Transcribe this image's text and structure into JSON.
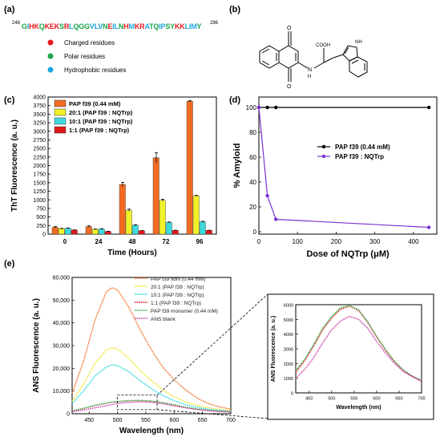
{
  "panel_labels": {
    "a": "(a)",
    "b": "(b)",
    "c": "(c)",
    "d": "(d)",
    "e": "(e)"
  },
  "panel_a": {
    "start_index": "248",
    "end_index": "286",
    "residues": [
      {
        "t": "G",
        "c": "polar"
      },
      {
        "t": "I",
        "c": "hydrophobic"
      },
      {
        "t": "H",
        "c": "charged"
      },
      {
        "t": "K",
        "c": "charged"
      },
      {
        "t": "Q",
        "c": "polar"
      },
      {
        "t": "K",
        "c": "charged"
      },
      {
        "t": "E",
        "c": "charged"
      },
      {
        "t": "K",
        "c": "charged"
      },
      {
        "t": "S",
        "c": "polar"
      },
      {
        "t": "R",
        "c": "charged"
      },
      {
        "t": "L",
        "c": "hydrophobic"
      },
      {
        "t": "Q",
        "c": "polar"
      },
      {
        "t": "G",
        "c": "polar"
      },
      {
        "t": "G",
        "c": "polar"
      },
      {
        "t": "V",
        "c": "hydrophobic"
      },
      {
        "t": "L",
        "c": "hydrophobic"
      },
      {
        "t": "V",
        "c": "hydrophobic"
      },
      {
        "t": "N",
        "c": "polar"
      },
      {
        "t": "E",
        "c": "charged"
      },
      {
        "t": "I",
        "c": "hydrophobic"
      },
      {
        "t": "L",
        "c": "hydrophobic"
      },
      {
        "t": "N",
        "c": "polar"
      },
      {
        "t": "H",
        "c": "charged"
      },
      {
        "t": "M",
        "c": "hydrophobic"
      },
      {
        "t": "K",
        "c": "charged"
      },
      {
        "t": "R",
        "c": "charged"
      },
      {
        "t": "A",
        "c": "hydrophobic"
      },
      {
        "t": "T",
        "c": "polar"
      },
      {
        "t": "Q",
        "c": "polar"
      },
      {
        "t": "I",
        "c": "hydrophobic"
      },
      {
        "t": "P",
        "c": "hydrophobic"
      },
      {
        "t": "S",
        "c": "polar"
      },
      {
        "t": "Y",
        "c": "polar"
      },
      {
        "t": "K",
        "c": "charged"
      },
      {
        "t": "K",
        "c": "charged"
      },
      {
        "t": "L",
        "c": "hydrophobic"
      },
      {
        "t": "I",
        "c": "hydrophobic"
      },
      {
        "t": "M",
        "c": "hydrophobic"
      },
      {
        "t": "Y",
        "c": "polar"
      }
    ],
    "legend": [
      {
        "label": "Charged residues",
        "class": "charged"
      },
      {
        "label": "Polar residues",
        "class": "polar"
      },
      {
        "label": "Hydrophobic residues",
        "class": "hydrophobic"
      }
    ],
    "colors": {
      "charged": "#e8191c",
      "polar": "#1aa64a",
      "hydrophobic": "#1da6e0"
    }
  },
  "panel_b": {
    "atom_labels": {
      "o_top": "O",
      "o_bottom": "O",
      "nh": "N",
      "h_amine": "H",
      "cooh": "COOH",
      "nh_indole": "NH"
    }
  },
  "chart_data": [
    {
      "panel": "c",
      "type": "bar",
      "categories": [
        "0",
        "24",
        "48",
        "72",
        "96"
      ],
      "xlabel": "Time (Hours)",
      "ylabel": "ThT Fluorescence (a. u.)",
      "ylim": [
        0,
        4000
      ],
      "yticks": [
        "0",
        "250",
        "500",
        "750",
        "1000",
        "1250",
        "1500",
        "1750",
        "2000",
        "2250",
        "2500",
        "2750",
        "3000",
        "3250",
        "3500",
        "3750",
        "4000"
      ],
      "legend_position": "top-left",
      "series": [
        {
          "name": "PAP f39 (0.44 mM)",
          "values": [
            200,
            220,
            1450,
            2230,
            3880
          ],
          "errors": [
            20,
            20,
            60,
            150,
            20
          ],
          "color": "#f26b21"
        },
        {
          "name": "20:1 (PAP f39 : NQTrp)",
          "values": [
            160,
            140,
            700,
            990,
            1120
          ],
          "errors": [
            10,
            10,
            30,
            30,
            15
          ],
          "color": "#f1f12a"
        },
        {
          "name": "10:1 (PAP f39 : NQTrp)",
          "values": [
            170,
            150,
            260,
            340,
            360
          ],
          "errors": [
            10,
            10,
            15,
            15,
            15
          ],
          "color": "#3fd9dd"
        },
        {
          "name": "1:1  (PAP f39 : NQTrp)",
          "values": [
            120,
            80,
            100,
            110,
            110
          ],
          "errors": [
            5,
            5,
            5,
            5,
            5
          ],
          "color": "#e3171a"
        }
      ]
    },
    {
      "panel": "d",
      "type": "line",
      "xlabel": "Dose of NQTrp (μM)",
      "ylabel": "% Amyloid",
      "xlim": [
        0,
        450
      ],
      "ylim": [
        0,
        100
      ],
      "xticks": [
        "0",
        "100",
        "200",
        "300",
        "400"
      ],
      "yticks": [
        "0",
        "20",
        "40",
        "60",
        "80",
        "100"
      ],
      "legend_position": "center-right",
      "series": [
        {
          "name": "PAP f39 (0.44 mM)",
          "x": [
            0,
            22,
            44,
            440
          ],
          "y": [
            100,
            100,
            100,
            100
          ],
          "color": "#000000"
        },
        {
          "name": "PAP f39 : NQTrp",
          "x": [
            0,
            22,
            44,
            440
          ],
          "y": [
            100,
            29,
            10,
            3.5
          ],
          "color": "#7b2fd1"
        }
      ]
    },
    {
      "panel": "e",
      "type": "line",
      "xlabel": "Wavelength (nm)",
      "ylabel": "ANS Fluorescence (a. u.)",
      "xlim": [
        420,
        700
      ],
      "ylim": [
        0,
        60000
      ],
      "xticks": [
        "450",
        "500",
        "550",
        "600",
        "650",
        "700"
      ],
      "yticks": [
        "0",
        "10,000",
        "20,000",
        "30,000",
        "40,000",
        "50,000",
        "60,000"
      ],
      "legend_position": "top-right",
      "x": [
        420,
        440,
        460,
        480,
        490,
        500,
        520,
        540,
        560,
        580,
        600,
        620,
        640,
        660,
        680,
        700
      ],
      "series": [
        {
          "name": "PAP f39 fibril (0.44 mM)",
          "y": [
            9000,
            23000,
            41000,
            53500,
            55500,
            54500,
            47000,
            37000,
            28000,
            20500,
            15000,
            10500,
            7000,
            4500,
            3000,
            2000
          ],
          "color": "#f26b21"
        },
        {
          "name": "20:1 (PAP f39 : NQTrp)",
          "y": [
            5500,
            13000,
            22000,
            28000,
            29000,
            28500,
            24500,
            19000,
            14500,
            10500,
            7500,
            5200,
            3700,
            2600,
            1900,
            1400
          ],
          "color": "#f1e11a"
        },
        {
          "name": "10:1 (PAP f39 : NQTrp)",
          "y": [
            4500,
            10000,
            16500,
            20500,
            21500,
            21200,
            18500,
            14500,
            11000,
            8000,
            5800,
            4000,
            2800,
            2000,
            1500,
            1100
          ],
          "color": "#1dd6e0"
        },
        {
          "name": "1:1  (PAP f39 : NQTrp)",
          "y": [
            1200,
            2300,
            3600,
            4600,
            5000,
            5300,
            5700,
            5800,
            5500,
            4800,
            3800,
            2800,
            2000,
            1400,
            1000,
            800
          ],
          "color": "#e3171a"
        },
        {
          "name": "PAP f39 monomer (0.44 mM)",
          "y": [
            1300,
            2400,
            3700,
            4700,
            5100,
            5400,
            5800,
            5900,
            5600,
            4900,
            3900,
            2900,
            2100,
            1500,
            1100,
            850
          ],
          "color": "#2db54a"
        },
        {
          "name": "ANS blank",
          "y": [
            900,
            1600,
            2600,
            3500,
            4000,
            4500,
            5000,
            5200,
            5000,
            4400,
            3500,
            2600,
            1900,
            1400,
            1000,
            800
          ],
          "color": "#c93aa6"
        }
      ],
      "inset": {
        "xlabel": "Wavelength (nm)",
        "ylabel": "ANS Fluorescence (a. u.)",
        "xlim": [
          420,
          700
        ],
        "ylim": [
          0,
          6000
        ],
        "xticks": [
          "450",
          "500",
          "550",
          "600",
          "650",
          "700"
        ],
        "yticks": [
          "0",
          "1000",
          "2000",
          "3000",
          "4000",
          "5000",
          "6000"
        ],
        "x": [
          420,
          440,
          460,
          480,
          500,
          520,
          540,
          560,
          580,
          600,
          620,
          640,
          660,
          680,
          700
        ],
        "series": [
          {
            "name": "1:1  (PAP f39 : NQTrp)",
            "y": [
              1400,
              2200,
              3200,
              4300,
              5100,
              5700,
              5900,
              5600,
              4800,
              3800,
              2900,
              2100,
              1500,
              1100,
              800
            ],
            "color": "#e3171a"
          },
          {
            "name": "PAP f39 monomer (0.44 mM)",
            "y": [
              1500,
              2300,
              3300,
              4400,
              5200,
              5800,
              5950,
              5650,
              4850,
              3850,
              2950,
              2150,
              1550,
              1150,
              850
            ],
            "color": "#2db54a"
          },
          {
            "name": "ANS blank",
            "y": [
              1000,
              1600,
              2400,
              3400,
              4300,
              4900,
              5200,
              5000,
              4400,
              3500,
              2700,
              2000,
              1450,
              1100,
              800
            ],
            "color": "#c93aa6"
          }
        ]
      }
    }
  ]
}
